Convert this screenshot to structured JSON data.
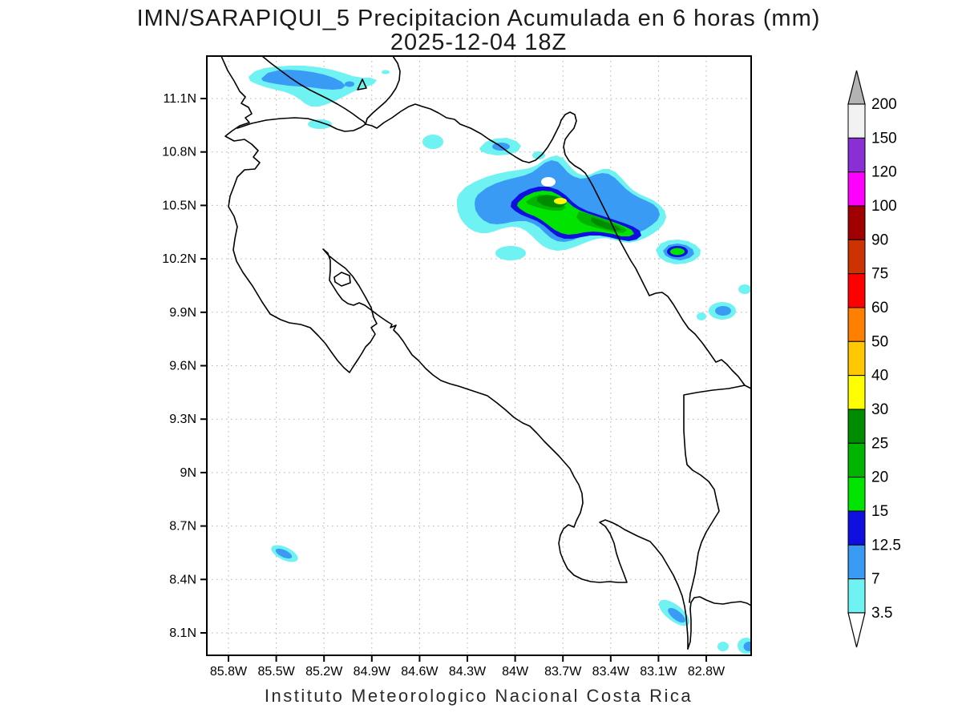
{
  "title": {
    "line1": "IMN/SARAPIQUI_5 Precipitacion Acumulada en 6 horas (mm)",
    "line2": "2025-12-04 18Z"
  },
  "footer": "Instituto Meteorologico Nacional Costa Rica",
  "axes": {
    "lat_ticks": [
      {
        "label": "11.1N",
        "value": 11.1
      },
      {
        "label": "10.8N",
        "value": 10.8
      },
      {
        "label": "10.5N",
        "value": 10.5
      },
      {
        "label": "10.2N",
        "value": 10.2
      },
      {
        "label": "9.9N",
        "value": 9.9
      },
      {
        "label": "9.6N",
        "value": 9.6
      },
      {
        "label": "9.3N",
        "value": 9.3
      },
      {
        "label": "9N",
        "value": 9.0
      },
      {
        "label": "8.7N",
        "value": 8.7
      },
      {
        "label": "8.4N",
        "value": 8.4
      },
      {
        "label": "8.1N",
        "value": 8.1
      }
    ],
    "lon_ticks": [
      {
        "label": "85.8W",
        "value": 85.8
      },
      {
        "label": "85.5W",
        "value": 85.5
      },
      {
        "label": "85.2W",
        "value": 85.2
      },
      {
        "label": "84.9W",
        "value": 84.9
      },
      {
        "label": "84.6W",
        "value": 84.6
      },
      {
        "label": "84.3W",
        "value": 84.3
      },
      {
        "label": "84W",
        "value": 84.0
      },
      {
        "label": "83.7W",
        "value": 83.7
      },
      {
        "label": "83.4W",
        "value": 83.4
      },
      {
        "label": "83.1W",
        "value": 83.1
      },
      {
        "label": "82.8W",
        "value": 82.8
      }
    ]
  },
  "colorbar": {
    "boundaries": [
      "200",
      "150",
      "120",
      "100",
      "90",
      "75",
      "60",
      "50",
      "40",
      "30",
      "25",
      "20",
      "15",
      "12.5",
      "7",
      "3.5"
    ],
    "segment_colors_top_to_bottom": [
      "#f2f2f2",
      "#8a2fd6",
      "#ff00ff",
      "#a10000",
      "#cc3300",
      "#ff0000",
      "#ff8000",
      "#ffc800",
      "#ffff00",
      "#008c00",
      "#00b400",
      "#00e400",
      "#0f0fe0",
      "#3a9bf5",
      "#6ef2f2"
    ],
    "above_max_color": "#b3b3b3",
    "below_min_color": "#ffffff",
    "units": "mm"
  },
  "palette": {
    "3.5": "#6ef2f2",
    "7": "#3a9bf5",
    "12.5": "#0f0fe0",
    "15": "#00e400",
    "20": "#00b400",
    "25": "#008c00",
    "30": "#ffff00"
  },
  "precip_features": [
    {
      "location": "SW shore of Lake Nicaragua (~11.2N 85.4W)",
      "peak_level_mm": "7-12.5"
    },
    {
      "location": "Caribbean slope band (~10.45N 83.9W)",
      "peak_level_mm": "30-40"
    },
    {
      "location": "Caribbean coast spot (~10.25N 83.0W)",
      "peak_level_mm": "15-20"
    },
    {
      "location": "spots near 9.9N 82.7W",
      "peak_level_mm": "7-12.5"
    },
    {
      "location": "Nicoya Peninsula spot (~8.55N 85.45W)",
      "peak_level_mm": "7-12.5"
    },
    {
      "location": "Punta Burica coast (~8.25N 82.9W)",
      "peak_level_mm": "7-12.5"
    },
    {
      "location": "scattered coastal spots",
      "peak_level_mm": "3.5-7"
    }
  ]
}
